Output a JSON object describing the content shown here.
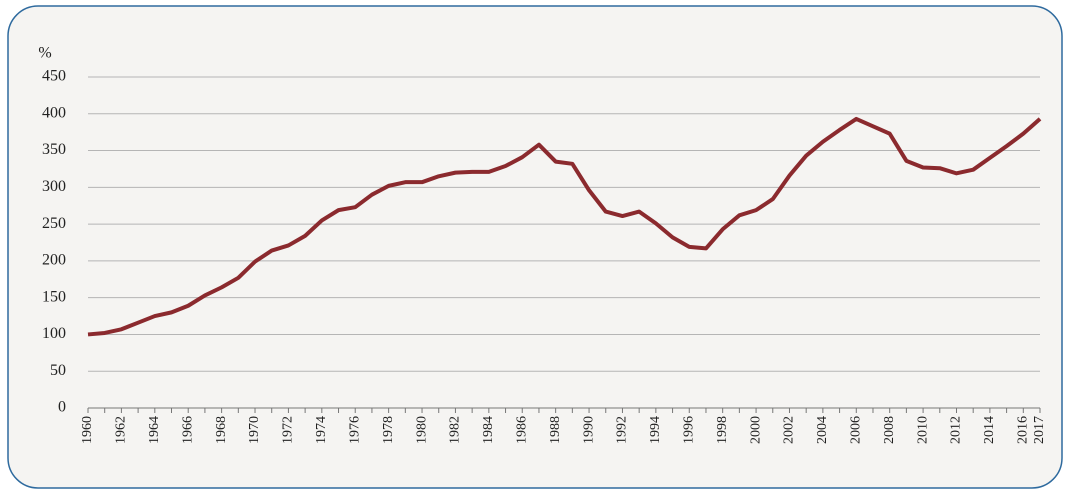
{
  "chart_data": {
    "type": "line",
    "y_label": "%",
    "categories": [
      "1960",
      null,
      "1962",
      null,
      "1964",
      null,
      "1966",
      null,
      "1968",
      null,
      "1970",
      null,
      "1972",
      null,
      "1974",
      null,
      "1976",
      null,
      "1978",
      null,
      "1980",
      null,
      "1982",
      null,
      "1984",
      null,
      "1986",
      null,
      "1988",
      null,
      "1990",
      null,
      "1992",
      null,
      "1994",
      null,
      "1996",
      null,
      "1998",
      null,
      "2000",
      null,
      "2002",
      null,
      "2004",
      null,
      "2006",
      null,
      "2008",
      null,
      "2010",
      null,
      "2012",
      null,
      "2014",
      null,
      "2016",
      "2017"
    ],
    "series": [
      {
        "color": "#8b2a2e",
        "values": [
          100,
          102,
          107,
          116,
          125,
          130,
          139,
          153,
          164,
          177,
          199,
          214,
          221,
          234,
          255,
          269,
          273,
          290,
          302,
          307,
          307,
          315,
          320,
          321,
          321,
          329,
          341,
          358,
          335,
          332,
          296,
          267,
          261,
          267,
          251,
          232,
          219,
          217,
          243,
          262,
          269,
          284,
          316,
          343,
          362,
          378,
          393,
          383,
          373,
          336,
          327,
          326,
          319,
          324,
          340,
          356,
          373,
          393
        ]
      }
    ],
    "ylim": [
      0,
      450
    ],
    "yticks": [
      0,
      50,
      100,
      150,
      200,
      250,
      300,
      350,
      400,
      450
    ],
    "grid": true
  }
}
